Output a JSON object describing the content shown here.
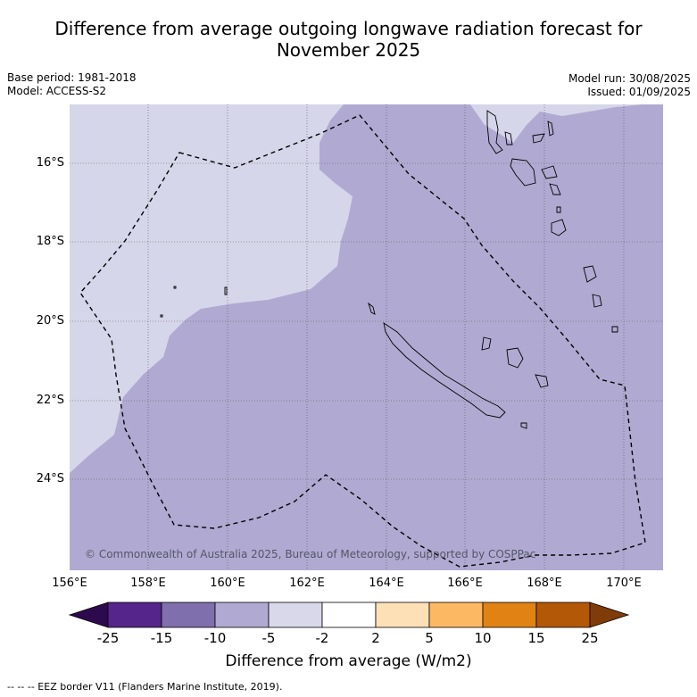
{
  "title_line1": "Difference from average outgoing longwave radiation forecast for",
  "title_line2": "November 2025",
  "base_period": "Base period: 1981-2018",
  "model": "Model: ACCESS-S2",
  "model_run": "Model run: 30/08/2025",
  "issued": "Issued: 01/09/2025",
  "copyright": "© Commonwealth of Australia 2025, Bureau of Meteorology, supported by COSPPac",
  "colorbar_title": "Difference from average (W/m2)",
  "footnote": "--  --  -- EEZ border V11 (Flanders Marine Institute, 2019).",
  "lat_labels": [
    "16°S",
    "18°S",
    "20°S",
    "22°S",
    "24°S"
  ],
  "lon_labels": [
    "156°E",
    "158°E",
    "160°E",
    "162°E",
    "164°E",
    "166°E",
    "168°E",
    "170°E"
  ],
  "colorbar": {
    "ticks": [
      "-25",
      "-15",
      "-10",
      "-5",
      "-2",
      "2",
      "5",
      "10",
      "15",
      "25"
    ],
    "colors": [
      "#2d0a4e",
      "#55258b",
      "#7f6fad",
      "#b0aad2",
      "#d9d8eb",
      "#ffffff",
      "#fee0b6",
      "#fdb863",
      "#e08214",
      "#b35806",
      "#7f3b08"
    ]
  },
  "map_colors": {
    "light_lavender": "#d6d6ea",
    "lavender": "#b0aad2"
  },
  "map_extent": {
    "lon": [
      156,
      171
    ],
    "lat": [
      -14.8,
      -26.0
    ]
  }
}
